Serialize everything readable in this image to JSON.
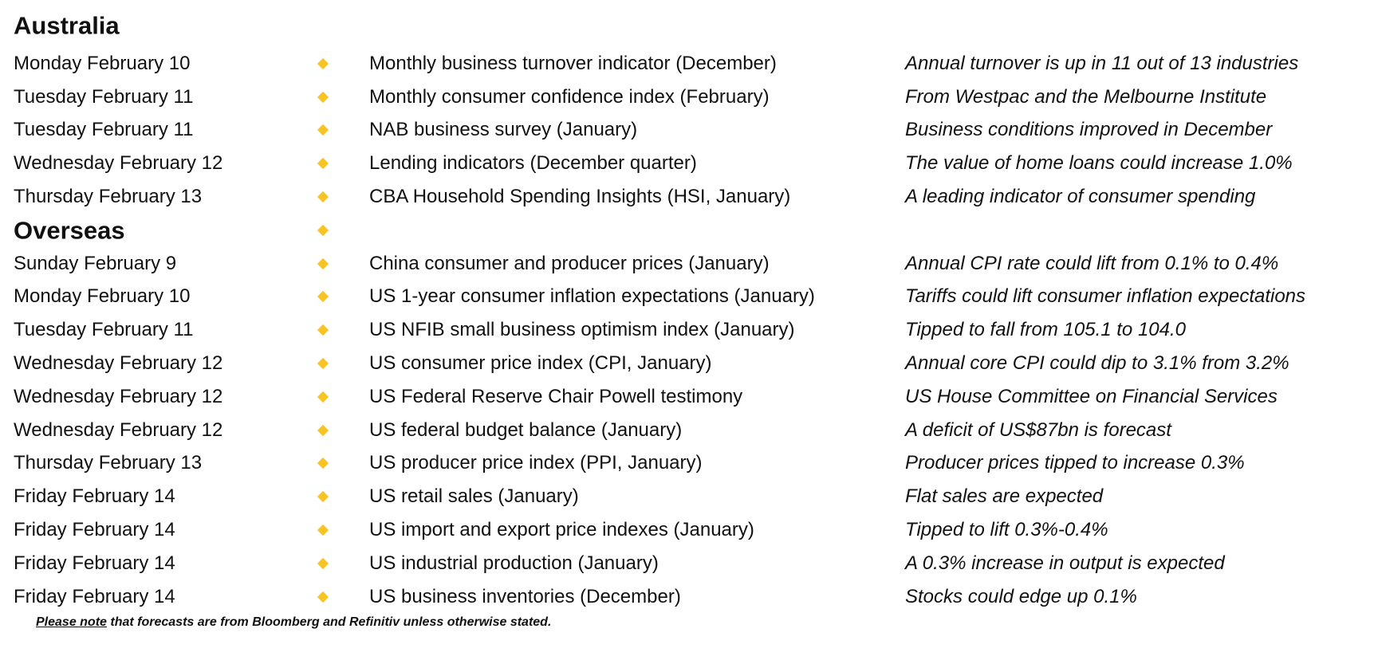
{
  "sections": [
    {
      "title": "Australia",
      "rows": [
        {
          "date": "Monday February 10",
          "event": "Monthly business turnover indicator (December)",
          "note": "Annual turnover is up in 11 out of 13 industries"
        },
        {
          "date": "Tuesday February 11",
          "event": "Monthly consumer confidence index (February)",
          "note": "From Westpac and the Melbourne Institute"
        },
        {
          "date": "Tuesday February 11",
          "event": "NAB business survey (January)",
          "note": "Business conditions improved in December"
        },
        {
          "date": "Wednesday February 12",
          "event": "Lending indicators (December quarter)",
          "note": "The value of home loans could increase 1.0%"
        },
        {
          "date": "Thursday February 13",
          "event": "CBA Household Spending Insights (HSI, January)",
          "note": "A leading indicator of consumer spending"
        }
      ]
    },
    {
      "title": "Overseas",
      "rows": [
        {
          "date": "Sunday February 9",
          "event": "China consumer and producer prices (January)",
          "note": "Annual CPI rate could lift from 0.1% to 0.4%"
        },
        {
          "date": "Monday February 10",
          "event": "US 1-year consumer inflation expectations (January)",
          "note": "Tariffs could lift consumer inflation expectations"
        },
        {
          "date": "Tuesday February 11",
          "event": "US NFIB small business optimism index (January)",
          "note": "Tipped to fall from 105.1 to 104.0"
        },
        {
          "date": "Wednesday February 12",
          "event": "US consumer price index (CPI, January)",
          "note": "Annual core CPI could dip to 3.1% from 3.2%"
        },
        {
          "date": "Wednesday February 12",
          "event": "US Federal Reserve Chair Powell testimony",
          "note": "US House Committee on Financial Services"
        },
        {
          "date": "Wednesday February 12",
          "event": "US federal budget balance (January)",
          "note": "A deficit of US$87bn is forecast"
        },
        {
          "date": "Thursday February 13",
          "event": "US producer price index (PPI, January)",
          "note": "Producer prices tipped to increase 0.3%"
        },
        {
          "date": "Friday February 14",
          "event": "US retail sales (January)",
          "note": "Flat sales are expected"
        },
        {
          "date": "Friday February 14",
          "event": "US import and export price indexes (January)",
          "note": "Tipped to lift 0.3%-0.4%"
        },
        {
          "date": "Friday February 14",
          "event": "US industrial production (January)",
          "note": "A 0.3% increase in output is expected"
        },
        {
          "date": "Friday February 14",
          "event": "US business inventories (December)",
          "note": "Stocks could edge up 0.1%"
        }
      ]
    }
  ],
  "footnote": {
    "emphasis": "Please note",
    "text": " that forecasts are from Bloomberg and Refinitiv unless otherwise stated."
  }
}
